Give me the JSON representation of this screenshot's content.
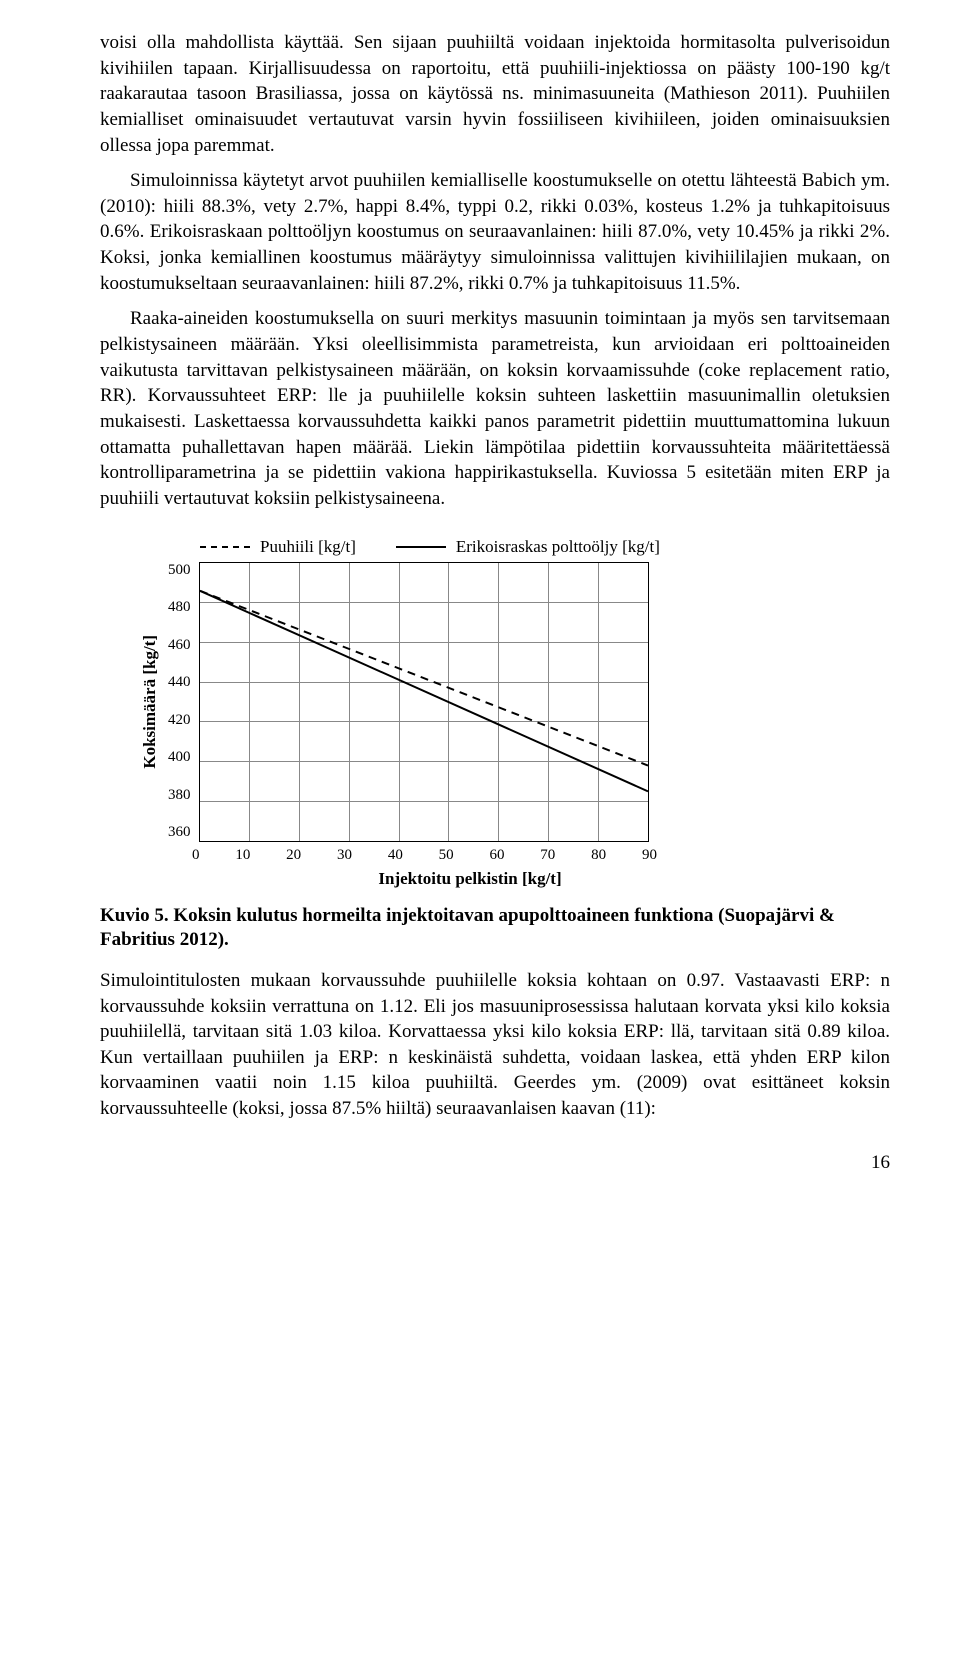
{
  "paragraphs": {
    "p1": "voisi olla mahdollista käyttää. Sen sijaan puuhiiltä voidaan injektoida hormitasolta pulverisoidun kivihiilen tapaan. Kirjallisuudessa on raportoitu, että puuhiili-injektiossa on päästy 100-190 kg/t raakarautaa tasoon Brasiliassa, jossa on käytössä ns. minimasuuneita (Mathieson 2011). Puuhiilen kemialliset ominaisuudet vertautuvat varsin hyvin fossiiliseen kivihiileen, joiden ominaisuuksien ollessa jopa paremmat.",
    "p2": "Simuloinnissa käytetyt arvot puuhiilen kemialliselle koostumukselle on otettu lähteestä Babich ym. (2010): hiili 88.3%, vety 2.7%, happi 8.4%, typpi 0.2, rikki 0.03%, kosteus 1.2% ja tuhkapitoisuus 0.6%. Erikoisraskaan polttoöljyn koostumus on seuraavanlainen: hiili 87.0%, vety 10.45% ja rikki 2%. Koksi, jonka kemiallinen koostumus määräytyy simuloinnissa valittujen kivihiililajien mukaan, on koostumukseltaan seuraavanlainen: hiili 87.2%, rikki 0.7% ja tuhkapitoisuus 11.5%.",
    "p3": "Raaka-aineiden koostumuksella on suuri merkitys masuunin toimintaan ja myös sen tarvitsemaan pelkistysaineen määrään. Yksi oleellisimmista parametreista, kun arvioidaan eri polttoaineiden vaikutusta tarvittavan pelkistysaineen määrään, on koksin korvaamissuhde (coke replacement ratio, RR). Korvaussuhteet ERP: lle ja puuhiilelle koksin suhteen laskettiin masuunimallin oletuksien mukaisesti. Laskettaessa korvaussuhdetta kaikki panos parametrit pidettiin muuttumattomina lukuun ottamatta puhallettavan hapen määrää. Liekin lämpötilaa pidettiin korvaussuhteita määritettäessä kontrolliparametrina ja se pidettiin vakiona happirikastuksella. Kuviossa 5 esitetään miten ERP ja puuhiili vertautuvat koksiin pelkistysaineena.",
    "p4": "Simulointitulosten mukaan korvaussuhde puuhiilelle koksia kohtaan on 0.97. Vastaavasti ERP: n korvaussuhde koksiin verrattuna on 1.12. Eli jos masuuniprosessissa halutaan korvata yksi kilo koksia puuhiilellä, tarvitaan sitä 1.03 kiloa. Korvattaessa yksi kilo koksia ERP: llä, tarvitaan sitä 0.89 kiloa. Kun vertaillaan puuhiilen ja ERP: n keskinäistä suhdetta, voidaan laskea, että yhden ERP kilon korvaaminen vaatii noin 1.15 kiloa puuhiiltä. Geerdes ym. (2009) ovat esittäneet koksin korvaussuhteelle (koksi, jossa 87.5% hiiltä) seuraavanlaisen kaavan (11):"
  },
  "chart": {
    "type": "line",
    "legend": {
      "series1": "Puuhiili [kg/t]",
      "series2": "Erikoisraskas polttoöljy [kg/t]"
    },
    "y_axis": {
      "label": "Koksimäärä [kg/t]",
      "ticks": [
        "500",
        "480",
        "460",
        "440",
        "420",
        "400",
        "380",
        "360"
      ],
      "min": 360,
      "max": 500
    },
    "x_axis": {
      "label": "Injektoitu pelkistin [kg/t]",
      "ticks": [
        "0",
        "10",
        "20",
        "30",
        "40",
        "50",
        "60",
        "70",
        "80",
        "90"
      ],
      "min": 0,
      "max": 90
    },
    "series": {
      "puuhiili": {
        "style": "dashed",
        "color": "#000000",
        "points": [
          [
            0,
            486
          ],
          [
            90,
            398
          ]
        ]
      },
      "erp": {
        "style": "solid",
        "color": "#000000",
        "points": [
          [
            0,
            486
          ],
          [
            90,
            385
          ]
        ]
      }
    },
    "grid_color": "#888888",
    "background_color": "#ffffff"
  },
  "figure_caption": "Kuvio 5. Koksin kulutus hormeilta injektoitavan apupolttoaineen funktiona (Suopajärvi & Fabritius 2012).",
  "page_number": "16"
}
